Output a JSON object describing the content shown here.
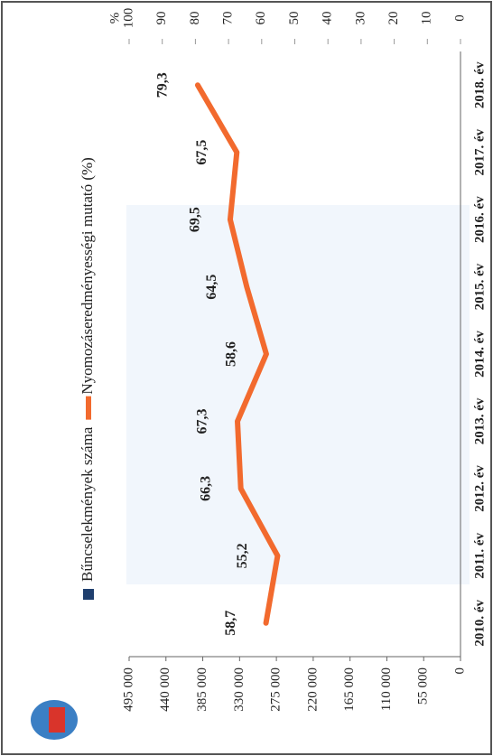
{
  "chart_data": {
    "type": "line",
    "categories": [
      "2010. év",
      "2011. év",
      "2012. év",
      "2013. év",
      "2014. év",
      "2015. év",
      "2016. év",
      "2017. év",
      "2018. év"
    ],
    "series": [
      {
        "name": "Bűncselekmények száma",
        "color": "#1f3f6e",
        "values": [
          null,
          null,
          null,
          null,
          null,
          null,
          null,
          null,
          null
        ]
      },
      {
        "name": "Nyomozáseredményességi mutató (%)",
        "color": "#f26a2e",
        "axis": "y2",
        "values": [
          58.7,
          55.2,
          66.3,
          67.3,
          58.6,
          64.5,
          69.5,
          67.5,
          79.3
        ],
        "value_labels": [
          "58,7",
          "55,2",
          "66,3",
          "67,3",
          "58,6",
          "64,5",
          "69,5",
          "67,5",
          "79,3"
        ]
      }
    ],
    "ylim": [
      0,
      495000
    ],
    "yticks": [
      0,
      {
        "value": 55000,
        "label": "55 000"
      },
      {
        "value": 110000,
        "label": "110 000"
      },
      {
        "value": 165000,
        "label": "165 000"
      },
      {
        "value": 220000,
        "label": "220 000"
      },
      {
        "value": 275000,
        "label": "275 000"
      },
      {
        "value": 330000,
        "label": "330 000"
      },
      {
        "value": 385000,
        "label": "385 000"
      },
      {
        "value": 440000,
        "label": "440 000"
      },
      {
        "value": 495000,
        "label": "495 000"
      }
    ],
    "y2_label": "%",
    "y2lim": [
      0,
      100
    ],
    "y2ticks": [
      0,
      10,
      20,
      30,
      40,
      50,
      60,
      70,
      80,
      90,
      100
    ]
  }
}
